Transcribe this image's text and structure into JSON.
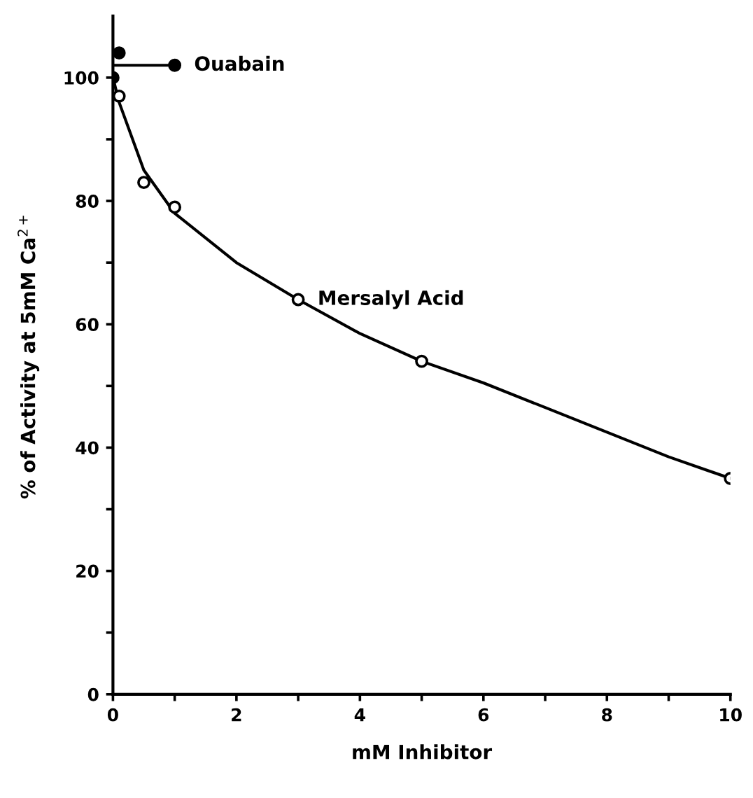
{
  "chart_data": {
    "type": "scatter",
    "xlabel": "mM Inhibitor",
    "ylabel": "% of Activity at 5mM Ca$^{2+}$",
    "xlim": [
      0,
      10
    ],
    "ylim": [
      0,
      110
    ],
    "xticks": [
      0,
      {
        "value": 1,
        "label": null
      },
      2,
      {
        "value": 3,
        "label": null
      },
      4,
      {
        "value": 5,
        "label": null
      },
      6,
      {
        "value": 7,
        "label": null
      },
      8,
      {
        "value": 9,
        "label": null
      },
      10
    ],
    "yticks": [
      0,
      {
        "value": 10,
        "label": null
      },
      20,
      {
        "value": 30,
        "label": null
      },
      40,
      {
        "value": 50,
        "label": null
      },
      60,
      {
        "value": 70,
        "label": null
      },
      80,
      {
        "value": 90,
        "label": null
      },
      100
    ],
    "grid": false,
    "legend": false,
    "series": [
      {
        "type": "line",
        "color": "#000000",
        "x": [
          0,
          0.1,
          0.5,
          1,
          2,
          3,
          4,
          5,
          6,
          7,
          8,
          9,
          10
        ],
        "values": [
          100,
          96,
          85,
          78,
          70,
          64,
          58.5,
          54,
          50.5,
          46.5,
          42.5,
          38.5,
          35
        ],
        "marker": "none",
        "line_style": "solid"
      },
      {
        "type": "line",
        "color": "#000000",
        "x": [
          0,
          1
        ],
        "values": [
          102,
          102
        ],
        "marker": "none",
        "line_style": "solid"
      },
      {
        "color": "#000000",
        "x": [
          0
        ],
        "values": [
          100
        ],
        "marker": "circle"
      },
      {
        "name": "Ouabain",
        "color": "#000000",
        "x": [
          0.1,
          1
        ],
        "values": [
          104,
          102
        ],
        "marker": "circle"
      },
      {
        "name": "Mersalyl Acid",
        "color": "#ffffff",
        "x": [
          0.1,
          0.5,
          1,
          3,
          5,
          10
        ],
        "values": [
          97,
          83,
          79,
          64,
          54,
          35
        ],
        "marker": "circle"
      }
    ]
  }
}
